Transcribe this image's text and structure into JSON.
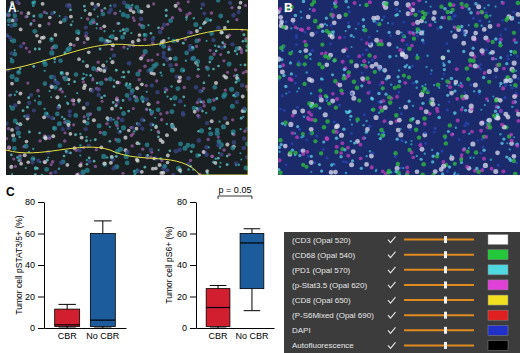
{
  "chart_data": [
    {
      "type": "box",
      "ylabel": "Tumor cell pSTAT3/5+ (%)",
      "categories": [
        "CBR",
        "No CBR"
      ],
      "colors": [
        "#d21f2f",
        "#1d5c9c"
      ],
      "min": [
        0,
        0
      ],
      "q1": [
        1,
        1
      ],
      "median": [
        2,
        5
      ],
      "q3": [
        12,
        60
      ],
      "max": [
        15,
        68
      ],
      "ylim": [
        0,
        80
      ],
      "yticks": [
        0,
        20,
        40,
        60,
        80
      ]
    },
    {
      "type": "box",
      "ylabel": "Tumor cell pS6+ (%)",
      "categories": [
        "CBR",
        "No CBR"
      ],
      "colors": [
        "#d21f2f",
        "#1d5c9c"
      ],
      "min": [
        0,
        11
      ],
      "q1": [
        1,
        25
      ],
      "median": [
        13,
        54
      ],
      "q3": [
        25,
        60
      ],
      "max": [
        27,
        63
      ],
      "ylim": [
        0,
        80
      ],
      "yticks": [
        0,
        20,
        40,
        60,
        80
      ],
      "annotation": "p = 0.05"
    }
  ],
  "figure": {
    "panels": [
      "A",
      "B",
      "C"
    ],
    "channels": [
      {
        "label": "(CD3 (Opal 520)",
        "color": "#ffffff"
      },
      {
        "label": "(CD68 (Opal 540)",
        "color": "#22c83a"
      },
      {
        "label": "(PD1 (Opal 570)",
        "color": "#4fd8e0"
      },
      {
        "label": "(p-Stat3.5 (Opal 620)",
        "color": "#e040d8"
      },
      {
        "label": "(CD8 (Opal 650)",
        "color": "#f0e020"
      },
      {
        "label": "(P-S6Mixed (Opal 690)",
        "color": "#e02020"
      },
      {
        "label": "DAPI",
        "color": "#2030c8"
      },
      {
        "label": "Autofluorescence",
        "color": "#000000"
      }
    ]
  }
}
